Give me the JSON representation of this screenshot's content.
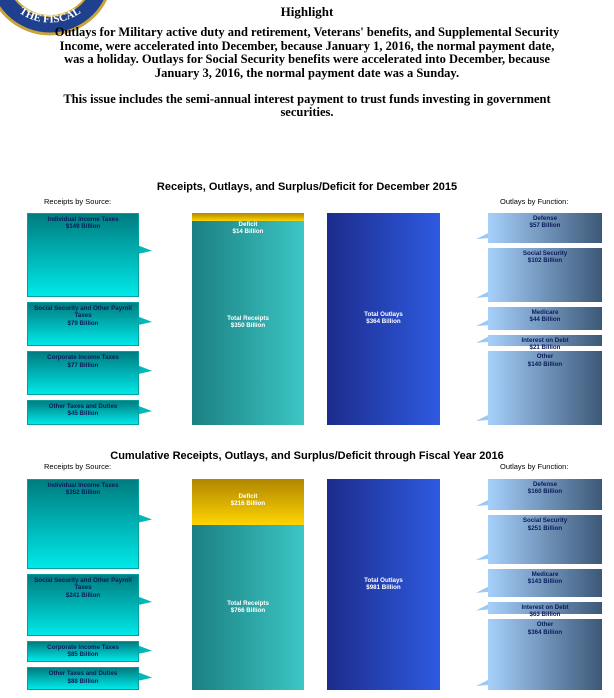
{
  "seal_text": "THE FISCAL",
  "header": {
    "title": "Highlight",
    "paragraphs": [
      "Outlays for Military active duty and retirement, Veterans' benefits, and Supplemental Security Income, were accelerated into December, because January 1, 2016, the normal payment date, was a holiday.  Outlays for Social Security benefits were accelerated into December, because January 3, 2016, the normal payment date was a Sunday.",
      "This issue includes the semi-annual interest payment to trust funds investing in government securities."
    ]
  },
  "panels": [
    {
      "title": "Receipts, Outlays, and Surplus/Deficit for December 2015",
      "receipts_heading": "Receipts by Source:",
      "outlays_heading": "Outlays by Function:",
      "receipts": [
        {
          "name": "Individual Income Taxes",
          "amount": 149,
          "amount_label": "$149 Billion"
        },
        {
          "name": "Social Security and Other Payroll Taxes",
          "amount": 79,
          "amount_label": "$79 Billion"
        },
        {
          "name": "Corporate Income Taxes",
          "amount": 77,
          "amount_label": "$77 Billion"
        },
        {
          "name": "Other Taxes and Duties",
          "amount": 45,
          "amount_label": "$45 Billion"
        }
      ],
      "deficit": {
        "name": "Deficit",
        "amount": 14,
        "amount_label": "$14 Billion"
      },
      "total_receipts": {
        "name": "Total Receipts",
        "amount": 350,
        "amount_label": "$350 Billion"
      },
      "total_outlays": {
        "name": "Total Outlays",
        "amount": 364,
        "amount_label": "$364 Billion"
      },
      "outlays": [
        {
          "name": "Defense",
          "amount": 57,
          "amount_label": "$57 Billion"
        },
        {
          "name": "Social Security",
          "amount": 102,
          "amount_label": "$102 Billion"
        },
        {
          "name": "Medicare",
          "amount": 44,
          "amount_label": "$44 Billion"
        },
        {
          "name": "Interest on Debt",
          "amount": 21,
          "amount_label": "$21 Billion"
        },
        {
          "name": "Other",
          "amount": 140,
          "amount_label": "$140 Billion"
        }
      ]
    },
    {
      "title": "Cumulative Receipts, Outlays, and Surplus/Deficit through Fiscal Year 2016",
      "receipts_heading": "Receipts by Source:",
      "outlays_heading": "Outlays by Function:",
      "receipts": [
        {
          "name": "Individual Income Taxes",
          "amount": 352,
          "amount_label": "$352 Billion"
        },
        {
          "name": "Social Security and Other Payroll Taxes",
          "amount": 241,
          "amount_label": "$241 Billion"
        },
        {
          "name": "Corporate Income Taxes",
          "amount": 85,
          "amount_label": "$85 Billion"
        },
        {
          "name": "Other Taxes and Duties",
          "amount": 88,
          "amount_label": "$88 Billion"
        }
      ],
      "deficit": {
        "name": "Deficit",
        "amount": 216,
        "amount_label": "$216 Billion"
      },
      "total_receipts": {
        "name": "Total Receipts",
        "amount": 766,
        "amount_label": "$766 Billion"
      },
      "total_outlays": {
        "name": "Total Outlays",
        "amount": 981,
        "amount_label": "$981 Billion"
      },
      "outlays": [
        {
          "name": "Defense",
          "amount": 160,
          "amount_label": "$160 Billion"
        },
        {
          "name": "Social Security",
          "amount": 251,
          "amount_label": "$251 Billion"
        },
        {
          "name": "Medicare",
          "amount": 143,
          "amount_label": "$143 Billion"
        },
        {
          "name": "Interest on Debt",
          "amount": 63,
          "amount_label": "$63 Billion"
        },
        {
          "name": "Other",
          "amount": 364,
          "amount_label": "$364 Billion"
        }
      ]
    }
  ]
}
